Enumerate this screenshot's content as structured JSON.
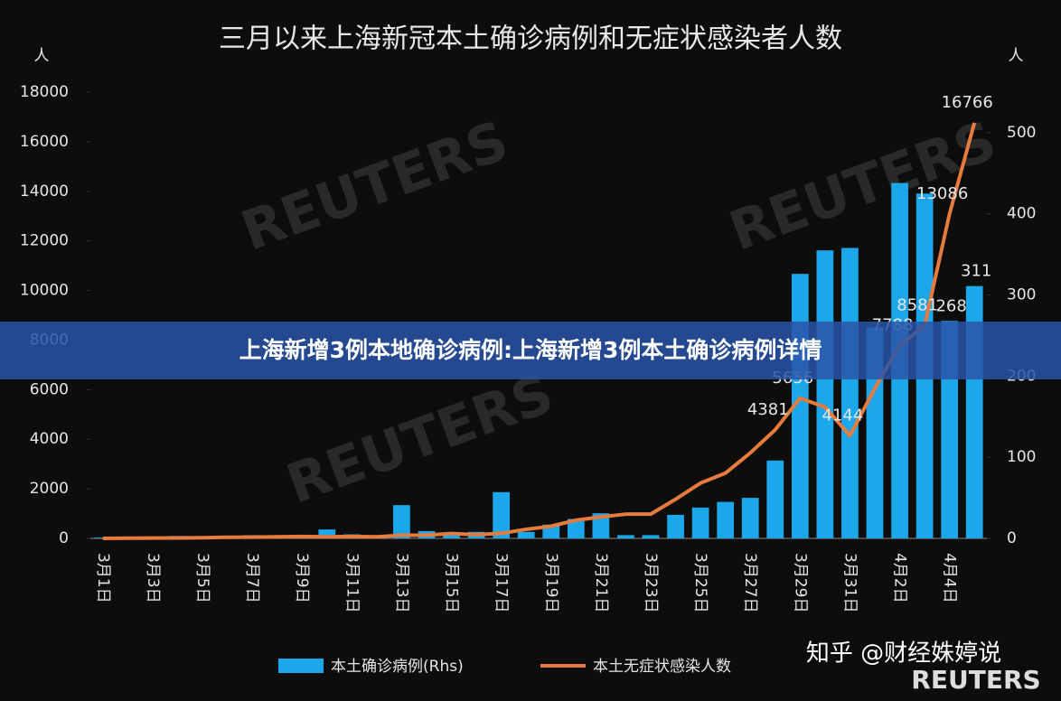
{
  "chart_data": {
    "type": "bar",
    "title": "三月以来上海新冠本土确诊病例和无症状感染者人数",
    "y_label": "人",
    "y2_label": "人",
    "categories": [
      "3月1日",
      null,
      "3月3日",
      null,
      "3月5日",
      null,
      "3月7日",
      null,
      "3月9日",
      null,
      "3月11日",
      null,
      "3月13日",
      null,
      "3月15日",
      null,
      "3月17日",
      null,
      "3月19日",
      null,
      "3月21日",
      null,
      "3月23日",
      null,
      "3月25日",
      null,
      "3月27日",
      null,
      "3月29日",
      null,
      "3月31日",
      null,
      "4月2日",
      null,
      "4月4日",
      null
    ],
    "series": [
      {
        "name": "本土确诊病例(Rhs)",
        "type": "bar",
        "axis": "y2",
        "color": "#1ba7ea",
        "values": [
          1,
          0,
          2,
          3,
          0,
          3,
          4,
          3,
          4,
          11,
          5,
          1,
          41,
          9,
          5,
          8,
          57,
          8,
          17,
          24,
          31,
          4,
          4,
          29,
          38,
          45,
          50,
          96,
          326,
          355,
          358,
          260,
          438,
          425,
          268,
          311
        ],
        "value_labels": [
          null,
          null,
          null,
          null,
          null,
          null,
          null,
          null,
          null,
          null,
          null,
          null,
          null,
          null,
          null,
          null,
          null,
          null,
          null,
          null,
          null,
          null,
          null,
          null,
          null,
          null,
          null,
          null,
          null,
          null,
          null,
          null,
          null,
          null,
          "268",
          "311"
        ]
      },
      {
        "name": "本土无症状感染人数",
        "type": "line",
        "color": "#e57b3c",
        "values": [
          1,
          7,
          14,
          16,
          28,
          45,
          51,
          62,
          76,
          64,
          78,
          64,
          128,
          130,
          197,
          150,
          203,
          366,
          492,
          734,
          865,
          977,
          979,
          1580,
          2231,
          2631,
          3450,
          4381,
          5656,
          5298,
          4144,
          6051,
          7788,
          8581,
          13086,
          16766
        ],
        "value_labels": [
          null,
          null,
          null,
          null,
          null,
          null,
          null,
          null,
          null,
          null,
          null,
          null,
          null,
          null,
          null,
          null,
          null,
          null,
          null,
          null,
          null,
          null,
          null,
          null,
          null,
          null,
          null,
          "4381",
          "5656",
          null,
          "4144",
          null,
          "7788",
          "8581",
          "13086",
          "16766"
        ]
      }
    ],
    "ylim": [
      0,
      18000
    ],
    "yticks": [
      0,
      2000,
      4000,
      6000,
      8000,
      10000,
      12000,
      14000,
      16000,
      18000
    ],
    "y2lim": [
      0,
      550
    ],
    "y2ticks": [
      0,
      100,
      200,
      300,
      400,
      500
    ],
    "legend": "bottom"
  },
  "banner": "上海新增3例本地确诊病例:上海新增3例本土确诊病例详情",
  "watermark": "知乎 @财经姝婷说",
  "source": "REUTERS"
}
